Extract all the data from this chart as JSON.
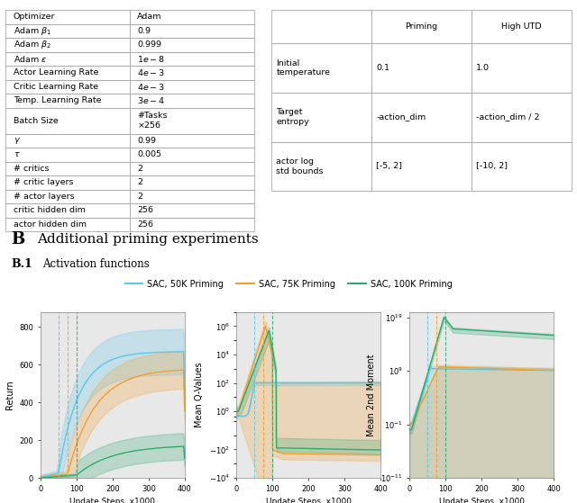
{
  "table1_rows": [
    [
      "Optimizer",
      "Adam"
    ],
    [
      "Adam $\\beta_1$",
      "0.9"
    ],
    [
      "Adam $\\beta_2$",
      "0.999"
    ],
    [
      "Adam $\\varepsilon$",
      "$1e-8$"
    ],
    [
      "Actor Learning Rate",
      "$4e-3$"
    ],
    [
      "Critic Learning Rate",
      "$4e-3$"
    ],
    [
      "Temp. Learning Rate",
      "$3e-4$"
    ],
    [
      "Batch Size",
      "#Tasks\n$\\times$256"
    ],
    [
      "$\\gamma$",
      "0.99"
    ],
    [
      "$\\tau$",
      "0.005"
    ],
    [
      "# critics",
      "2"
    ],
    [
      "# critic layers",
      "2"
    ],
    [
      "# actor layers",
      "2"
    ],
    [
      "critic hidden dim",
      "256"
    ],
    [
      "actor hidden dim",
      "256"
    ]
  ],
  "table2_header": [
    "",
    "Priming",
    "High UTD"
  ],
  "table2_rows": [
    [
      "Initial\ntemperature",
      "0.1",
      "1.0"
    ],
    [
      "Target\nentropy",
      "-action_dim",
      "-action_dim / 2"
    ],
    [
      "actor log\nstd bounds",
      "[-5, 2]",
      "[-10, 2]"
    ]
  ],
  "section_label": "B",
  "section_title": "Additional priming experiments",
  "subsection_label": "B.1",
  "subsection_title": "Activation functions",
  "legend_entries": [
    "SAC, 50K Priming",
    "SAC, 75K Priming",
    "SAC, 100K Priming"
  ],
  "line_colors": [
    "#5bc8e8",
    "#f0a030",
    "#2eaa6e"
  ],
  "vline_x": [
    50,
    75,
    100
  ],
  "plot1_ylabel": "Return",
  "plot2_ylabel": "Mean Q-Values",
  "plot3_ylabel": "Mean 2nd Moment",
  "xlabel": "Update Steps, x1000",
  "plot_bg": "#e8e8e8"
}
